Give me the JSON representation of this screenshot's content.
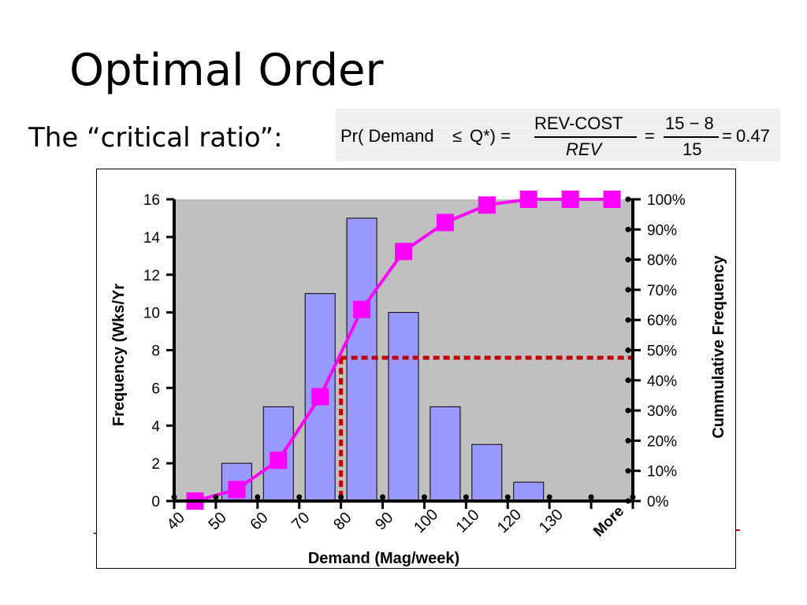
{
  "slide": {
    "title": "Optimal Order",
    "ratio_label": "The “critical ratio”:"
  },
  "formula": {
    "lhs": "Pr( Demand",
    "leq": "≤",
    "q": "Q*) =",
    "numerator": "REV-COST",
    "denominator": "REV",
    "eq1": "=",
    "numerator2": "15 − 8",
    "denominator2": "15",
    "eq2": "=",
    "result": "0.47"
  },
  "colors": {
    "bar_fill": "#9999ff",
    "plot_bg": "#c0c0c0",
    "cumulative_line": "#ff00ff",
    "guide_line": "#c00000"
  },
  "chart_data": {
    "type": "bar",
    "x_label": "Demand (Mag/week)",
    "y_label": "Frequency (Wks/Yr",
    "y2_label": "Cummulative Frequency",
    "categories": [
      "40",
      "50",
      "60",
      "70",
      "80",
      "90",
      "100",
      "110",
      "120",
      "130",
      "More"
    ],
    "ylim": [
      0,
      16
    ],
    "yticks": [
      0,
      2,
      4,
      6,
      8,
      10,
      12,
      14,
      16
    ],
    "y2lim": [
      0,
      100
    ],
    "y2ticks": [
      "0%",
      "10%",
      "20%",
      "30%",
      "40%",
      "50%",
      "60%",
      "70%",
      "80%",
      "90%",
      "100%"
    ],
    "series": [
      {
        "type": "bar",
        "values": [
          0,
          2,
          5,
          11,
          15,
          10,
          5,
          3,
          1,
          0,
          0
        ]
      },
      {
        "type": "line",
        "axis": "right",
        "values": [
          0,
          3.8,
          13.5,
          34.6,
          63.5,
          82.7,
          92.3,
          98.1,
          100,
          100,
          100
        ]
      }
    ],
    "guide": {
      "critical_ratio": 47.5,
      "demand": 80
    },
    "grid": false
  }
}
